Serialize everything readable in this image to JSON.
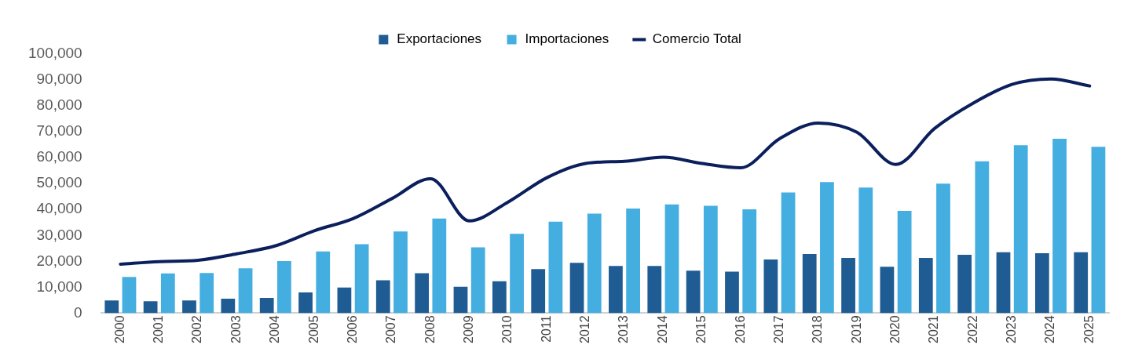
{
  "chart_data": {
    "type": "bar",
    "categories": [
      "2000",
      "2001",
      "2002",
      "2003",
      "2004",
      "2005",
      "2006",
      "2007",
      "2008",
      "2009",
      "2010",
      "2011",
      "2012",
      "2013",
      "2014",
      "2015",
      "2016",
      "2017",
      "2018",
      "2019",
      "2020",
      "2021",
      "2022",
      "2023",
      "2024",
      "2025"
    ],
    "series": [
      {
        "name": "Exportaciones",
        "color": "#1f5c94",
        "values": [
          4900,
          4600,
          4900,
          5600,
          5900,
          8000,
          9900,
          12700,
          15400,
          10200,
          12300,
          17000,
          19400,
          18200,
          18200,
          16400,
          16000,
          20700,
          22800,
          21300,
          17900,
          21300,
          22500,
          23500,
          23100,
          23500
        ]
      },
      {
        "name": "Importaciones",
        "color": "#44aee0",
        "values": [
          14000,
          15300,
          15500,
          17300,
          20100,
          23800,
          26600,
          31500,
          36500,
          25400,
          30600,
          35300,
          38400,
          40400,
          42000,
          41400,
          40100,
          46600,
          50600,
          48500,
          39500,
          50000,
          58600,
          64800,
          67300,
          64200
        ]
      },
      {
        "name": "Comercio Total",
        "type": "line",
        "color": "#0b1f5c",
        "values": [
          18900,
          19900,
          20400,
          22900,
          26000,
          31800,
          36500,
          44200,
          51900,
          35600,
          42900,
          52300,
          57800,
          58600,
          60200,
          57800,
          56100,
          67300,
          73400,
          69800,
          57400,
          71300,
          81100,
          88300,
          90400,
          87700
        ]
      }
    ],
    "ylim": [
      0,
      100000
    ],
    "yticks": [
      {
        "value": 0,
        "label": "0"
      },
      {
        "value": 10000,
        "label": "10,000"
      },
      {
        "value": 20000,
        "label": "20,000"
      },
      {
        "value": 30000,
        "label": "30,000"
      },
      {
        "value": 40000,
        "label": "40,000"
      },
      {
        "value": 50000,
        "label": "50,000"
      },
      {
        "value": 60000,
        "label": "60,000"
      },
      {
        "value": 70000,
        "label": "70,000"
      },
      {
        "value": 80000,
        "label": "80,000"
      },
      {
        "value": 90000,
        "label": "90,000"
      },
      {
        "value": 100000,
        "label": "100,000"
      }
    ],
    "grid": false,
    "legend": "top",
    "marker": "none",
    "line_style": "solid"
  }
}
